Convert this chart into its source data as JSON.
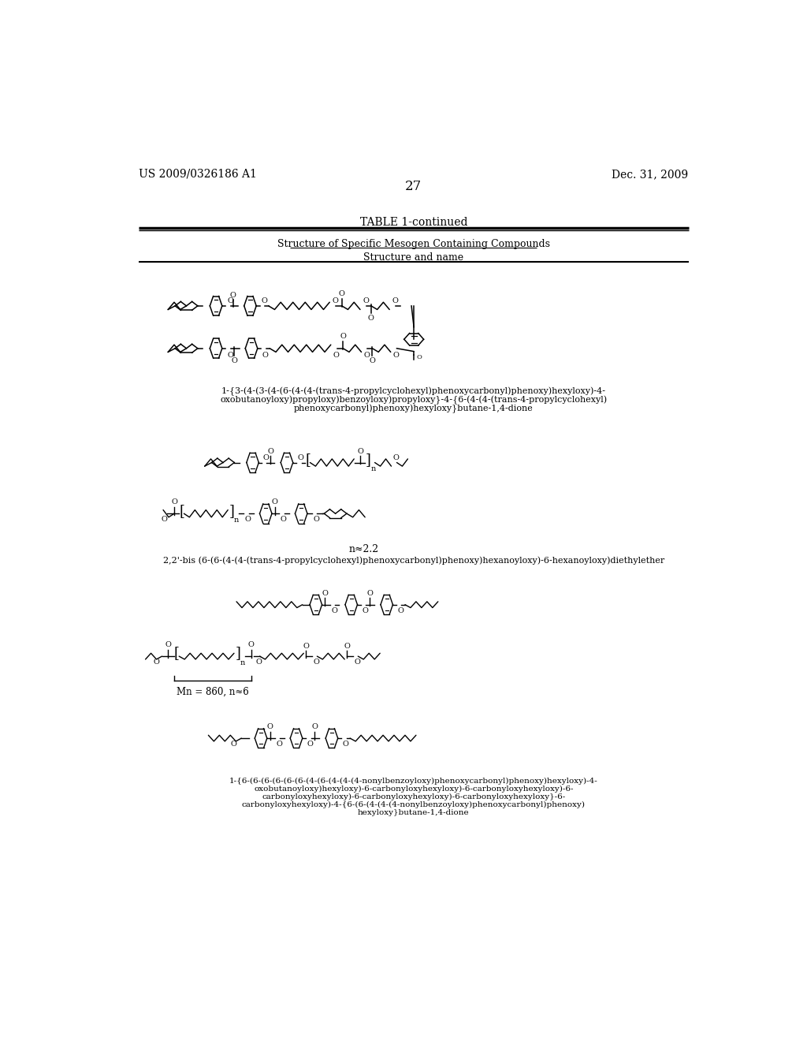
{
  "page_number": "27",
  "patent_left": "US 2009/0326186 A1",
  "patent_right": "Dec. 31, 2009",
  "table_title": "TABLE 1-continued",
  "table_subtitle": "Structure of Specific Mesogen Containing Compounds",
  "col_header": "Structure and name",
  "background_color": "#ffffff",
  "text_color": "#000000",
  "compound1_name_line1": "1-{3-(4-(3-(4-(6-(4-(4-(trans-4-propylcyclohexyl)phenoxycarbonyl)phenoxy)hexyloxy)-4-",
  "compound1_name_line2": "oxobutanoyloxy)propyloxy)benzoyloxy)propyloxy}-4-{6-(4-(4-(trans-4-propylcyclohexyl)",
  "compound1_name_line3": "phenoxycarbonyl)phenoxy)hexyloxy}butane-1,4-dione",
  "compound2_n": "n≈2.2",
  "compound2_name": "2,2'-bis (6-(6-(4-(4-(trans-4-propylcyclohexyl)phenoxycarbonyl)phenoxy)hexanoyloxy)-6-hexanoyloxy)diethylether",
  "mn_label": "Mn = 860, n≈6",
  "compound4_name_line1": "1-{6-(6-(6-(6-(6-(6-(4-(6-(4-(4-(4-nonylbenzoyloxy)phenoxycarbonyl)phenoxy)hexyloxy)-4-",
  "compound4_name_line2": "oxobutanoyloxy)hexyloxy)-6-carbonyloxyhexyloxy)-6-carbonyloxyhexyloxy)-6-",
  "compound4_name_line3": "carbonyloxyhexyloxy)-6-carbonyloxyhexyloxy)-6-carbonyloxyhexyloxy}-6-",
  "compound4_name_line4": "carbonyloxyhexyloxy)-4-{6-(6-(4-(4-(4-nonylbenzoyloxy)phenoxycarbonyl)phenoxy)",
  "compound4_name_line5": "hexyloxy}butane-1,4-dione"
}
